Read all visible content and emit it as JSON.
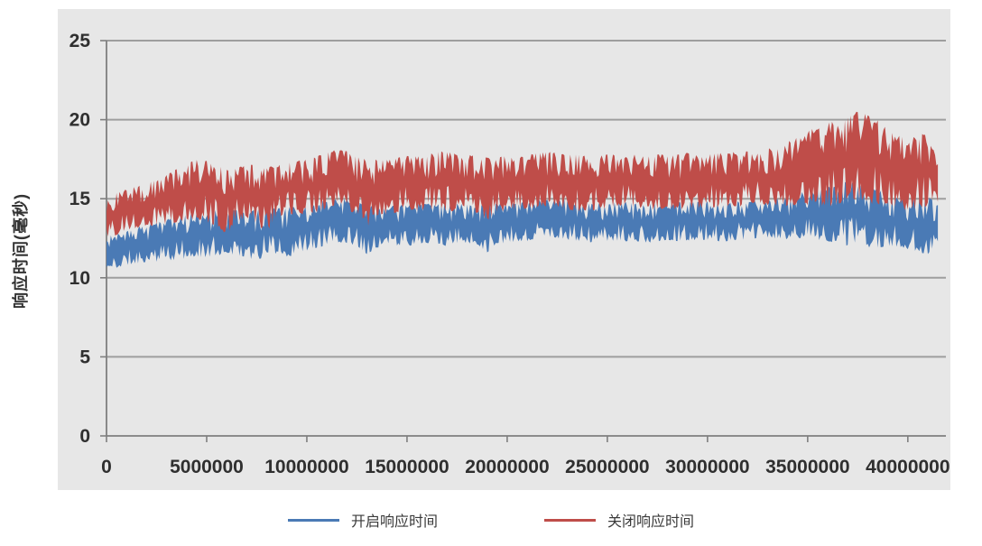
{
  "page": {
    "background": "#ffffff"
  },
  "chart": {
    "area_background": "#e7e7e7",
    "gridline_color": "#9e9e9e",
    "axis_color": "#7f7f7f",
    "tick_label_color": "#2f2f2f",
    "axis_title_color": "#333333",
    "legend_text_color": "#3a3a3a"
  },
  "chart_data": {
    "type": "line",
    "title": "",
    "xlabel": "",
    "ylabel": "响应时间(毫秒)",
    "ylim": [
      0,
      25
    ],
    "y_ticks": [
      0,
      5,
      10,
      15,
      20,
      25
    ],
    "x_tick_labels": [
      "0",
      "5000000",
      "10000000",
      "15000000",
      "20000000",
      "25000000",
      "30000000",
      "35000000",
      "40000000"
    ],
    "x_tick_values_millions": [
      0,
      5,
      10,
      15,
      20,
      25,
      30,
      35,
      40
    ],
    "xlim_millions": [
      0,
      41.9
    ],
    "x_unit_multiplier": 1000000,
    "grid": "horizontal",
    "legend_position": "bottom-center",
    "noise_seed": 11,
    "sampling_note": "Each series is a dense noisy line; stored here as min/max envelope (ms) per 0.5M x-bucket, estimated from pixels.",
    "x_millions": [
      0,
      0.5,
      1,
      1.5,
      2,
      2.5,
      3,
      3.5,
      4,
      4.5,
      5,
      5.5,
      6,
      6.5,
      7,
      7.5,
      8,
      8.5,
      9,
      9.5,
      10,
      10.5,
      11,
      11.5,
      12,
      12.5,
      13,
      13.5,
      14,
      14.5,
      15,
      15.5,
      16,
      16.5,
      17,
      17.5,
      18,
      18.5,
      19,
      19.5,
      20,
      20.5,
      21,
      21.5,
      22,
      22.5,
      23,
      23.5,
      24,
      24.5,
      25,
      25.5,
      26,
      26.5,
      27,
      27.5,
      28,
      28.5,
      29,
      29.5,
      30,
      30.5,
      31,
      31.5,
      32,
      32.5,
      33,
      33.5,
      34,
      34.5,
      35,
      35.5,
      36,
      36.5,
      37,
      37.5,
      38,
      38.5,
      39,
      39.5,
      40,
      40.5,
      41,
      41.5
    ],
    "series": [
      {
        "name": "开启响应时间",
        "color": "#4a7ab5",
        "y_low": [
          10.4,
          10.6,
          10.8,
          10.9,
          11.0,
          11.0,
          11.1,
          11.1,
          11.2,
          11.3,
          11.3,
          11.4,
          11.5,
          11.4,
          11.3,
          10.9,
          11.6,
          11.5,
          11.2,
          11.6,
          11.7,
          11.9,
          12.0,
          12.2,
          12.2,
          12.0,
          11.5,
          11.9,
          12.0,
          12.0,
          12.0,
          12.1,
          12.2,
          12.1,
          12.0,
          12.1,
          12.2,
          12.1,
          11.6,
          12.1,
          12.2,
          12.3,
          12.3,
          12.5,
          12.6,
          12.5,
          12.4,
          12.3,
          12.2,
          12.3,
          12.3,
          12.3,
          12.3,
          12.3,
          12.2,
          12.3,
          12.4,
          12.3,
          12.3,
          12.4,
          12.4,
          12.3,
          12.3,
          12.4,
          12.4,
          12.5,
          12.5,
          12.4,
          12.4,
          12.5,
          12.5,
          12.4,
          12.3,
          12.2,
          12.0,
          12.2,
          11.8,
          11.9,
          12.0,
          11.9,
          11.8,
          11.6,
          11.5,
          12.3
        ],
        "y_high": [
          12.6,
          12.8,
          13.0,
          13.2,
          13.4,
          13.5,
          13.7,
          13.9,
          14.0,
          14.2,
          14.2,
          14.3,
          14.3,
          14.3,
          14.2,
          14.3,
          14.4,
          14.4,
          14.5,
          14.5,
          14.6,
          14.8,
          14.9,
          15.0,
          15.0,
          14.8,
          14.6,
          14.5,
          14.5,
          14.6,
          14.6,
          14.7,
          14.7,
          14.7,
          14.6,
          14.7,
          14.7,
          14.6,
          14.6,
          14.7,
          14.7,
          14.8,
          14.8,
          15.0,
          15.1,
          15.0,
          14.9,
          14.8,
          14.7,
          14.7,
          14.7,
          14.8,
          14.8,
          14.7,
          14.7,
          14.8,
          14.8,
          14.8,
          14.8,
          14.8,
          14.9,
          14.8,
          14.8,
          14.9,
          14.9,
          14.9,
          15.0,
          15.0,
          15.1,
          15.3,
          15.6,
          15.7,
          15.8,
          15.9,
          16.1,
          16.0,
          15.8,
          15.6,
          15.3,
          15.1,
          15.0,
          15.1,
          15.2,
          14.6
        ]
      },
      {
        "name": "关闭响应时间",
        "color": "#bf4d49",
        "y_low": [
          12.4,
          12.7,
          13.0,
          13.1,
          13.2,
          13.3,
          13.4,
          13.5,
          13.6,
          13.6,
          13.5,
          13.3,
          12.7,
          13.5,
          13.8,
          13.4,
          12.8,
          13.8,
          14.0,
          14.0,
          14.0,
          14.1,
          14.2,
          14.3,
          14.3,
          14.0,
          13.2,
          13.9,
          14.0,
          14.1,
          14.2,
          14.2,
          14.3,
          14.3,
          14.2,
          14.2,
          14.3,
          14.1,
          13.6,
          14.1,
          14.2,
          14.3,
          14.3,
          14.4,
          14.5,
          14.4,
          14.3,
          14.2,
          14.2,
          14.3,
          14.3,
          14.4,
          14.4,
          14.3,
          14.3,
          14.3,
          14.4,
          14.3,
          14.3,
          14.4,
          14.4,
          14.4,
          14.5,
          14.5,
          14.5,
          14.6,
          14.6,
          14.5,
          14.5,
          14.6,
          14.6,
          14.5,
          14.4,
          14.6,
          14.8,
          15.0,
          14.7,
          14.5,
          14.6,
          14.4,
          14.2,
          14.4,
          14.5,
          14.8
        ],
        "y_high": [
          15.2,
          15.4,
          15.6,
          15.8,
          16.0,
          16.2,
          16.5,
          16.9,
          17.3,
          17.5,
          17.4,
          17.1,
          16.9,
          17.0,
          17.2,
          17.1,
          17.0,
          17.1,
          17.3,
          17.4,
          17.5,
          17.7,
          17.9,
          18.2,
          18.0,
          17.7,
          17.5,
          17.5,
          17.5,
          17.6,
          17.7,
          17.7,
          17.8,
          18.0,
          18.0,
          17.8,
          17.8,
          17.7,
          17.6,
          17.7,
          17.7,
          17.8,
          17.8,
          17.9,
          18.0,
          17.9,
          17.8,
          17.8,
          17.7,
          17.7,
          17.8,
          17.8,
          17.8,
          17.8,
          17.7,
          17.8,
          17.8,
          17.8,
          17.9,
          17.8,
          17.8,
          17.9,
          17.9,
          18.0,
          18.0,
          18.1,
          18.2,
          18.4,
          18.6,
          19.0,
          19.3,
          19.6,
          19.8,
          20.1,
          20.3,
          20.6,
          20.3,
          20.0,
          19.4,
          19.0,
          18.8,
          19.0,
          19.3,
          17.2
        ]
      }
    ]
  }
}
